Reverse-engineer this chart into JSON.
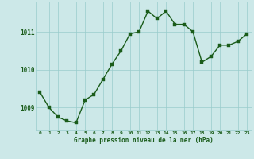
{
  "x": [
    0,
    1,
    2,
    3,
    4,
    5,
    6,
    7,
    8,
    9,
    10,
    11,
    12,
    13,
    14,
    15,
    16,
    17,
    18,
    19,
    20,
    21,
    22,
    23
  ],
  "y": [
    1009.4,
    1009.0,
    1008.75,
    1008.65,
    1008.6,
    1009.2,
    1009.35,
    1009.75,
    1010.15,
    1010.5,
    1010.95,
    1011.0,
    1011.55,
    1011.35,
    1011.55,
    1011.2,
    1011.2,
    1011.0,
    1010.2,
    1010.35,
    1010.65,
    1010.65,
    1010.75,
    1010.95
  ],
  "line_color": "#1a5c1a",
  "marker_color": "#1a5c1a",
  "bg_color": "#cce8e8",
  "grid_color": "#99cccc",
  "axis_label_color": "#1a5c1a",
  "xlabel": "Graphe pression niveau de la mer (hPa)",
  "ylim": [
    1008.4,
    1011.8
  ],
  "yticks": [
    1009,
    1010,
    1011
  ],
  "xticks": [
    0,
    1,
    2,
    3,
    4,
    5,
    6,
    7,
    8,
    9,
    10,
    11,
    12,
    13,
    14,
    15,
    16,
    17,
    18,
    19,
    20,
    21,
    22,
    23
  ],
  "marker_size": 2.2,
  "line_width": 1.0
}
